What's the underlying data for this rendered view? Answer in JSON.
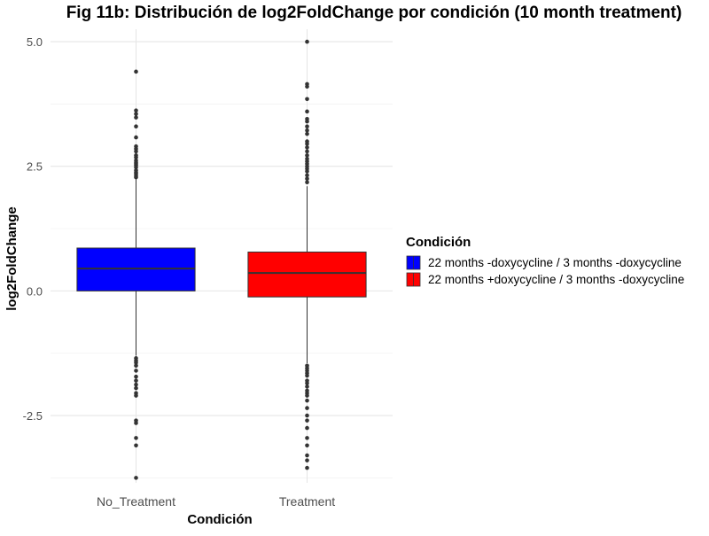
{
  "chart_data": {
    "type": "box",
    "title": "Fig 11b: Distribución de log2FoldChange por condición (10 month treatment)",
    "xlabel": "Condición",
    "ylabel": "log2FoldChange",
    "categories": [
      "No_Treatment",
      "Treatment"
    ],
    "ylim": [
      -3.85,
      5.25
    ],
    "yticks": [
      -2.5,
      0.0,
      2.5,
      5.0
    ],
    "ytick_labels": [
      "-2.5",
      "0.0",
      "2.5",
      "5.0"
    ],
    "grid": true,
    "legend": {
      "title": "Condición",
      "placement": "right",
      "entries": [
        {
          "label": "22 months -doxycycline / 3 months -doxycycline",
          "color": "#0000ff"
        },
        {
          "label": "22 months +doxycycline / 3 months -doxycycline",
          "color": "#ff0000"
        }
      ]
    },
    "boxes": [
      {
        "category": "No_Treatment",
        "fill": "#0000ff",
        "q1": 0.0,
        "median": 0.45,
        "q3": 0.86,
        "whisker_low": -1.3,
        "whisker_high": 2.25,
        "outliers": [
          4.4,
          3.62,
          3.55,
          3.48,
          3.3,
          3.08,
          2.9,
          2.85,
          2.8,
          2.72,
          2.68,
          2.62,
          2.58,
          2.55,
          2.52,
          2.48,
          2.42,
          2.38,
          2.35,
          2.31,
          2.28,
          -1.35,
          -1.4,
          -1.44,
          -1.5,
          -1.6,
          -1.72,
          -1.8,
          -1.88,
          -1.95,
          -2.05,
          -2.1,
          -2.6,
          -2.65,
          -2.95,
          -3.1,
          -3.75
        ]
      },
      {
        "category": "Treatment",
        "fill": "#ff0000",
        "q1": -0.12,
        "median": 0.36,
        "q3": 0.78,
        "whisker_low": -1.45,
        "whisker_high": 2.1,
        "outliers": [
          5.0,
          4.15,
          4.1,
          3.85,
          3.6,
          3.45,
          3.4,
          3.3,
          3.22,
          3.15,
          3.0,
          2.95,
          2.88,
          2.8,
          2.72,
          2.65,
          2.6,
          2.55,
          2.5,
          2.45,
          2.4,
          2.32,
          2.25,
          2.18,
          -1.5,
          -1.55,
          -1.6,
          -1.65,
          -1.7,
          -1.8,
          -1.85,
          -1.92,
          -2.0,
          -2.05,
          -2.1,
          -2.2,
          -2.35,
          -2.5,
          -2.6,
          -2.75,
          -2.95,
          -3.1,
          -3.3,
          -3.4,
          -3.55
        ]
      }
    ]
  }
}
